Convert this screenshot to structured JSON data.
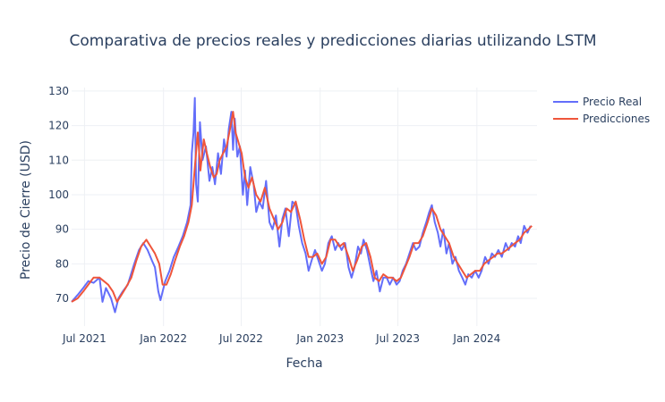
{
  "chart_data": {
    "type": "line",
    "title": "Comparativa de precios reales y predicciones diarias utilizando LSTM",
    "xlabel": "Fecha",
    "ylabel": "Precio de Cierre (USD)",
    "x_range": [
      "2021-06-01",
      "2024-05-20"
    ],
    "ylim": [
      62,
      131
    ],
    "y_ticks": [
      70,
      80,
      90,
      100,
      110,
      120,
      130
    ],
    "x_ticks": [
      {
        "date": "2021-07-01",
        "label": "Jul 2021"
      },
      {
        "date": "2022-01-01",
        "label": "Jan 2022"
      },
      {
        "date": "2022-07-01",
        "label": "Jul 2022"
      },
      {
        "date": "2023-01-01",
        "label": "Jan 2023"
      },
      {
        "date": "2023-07-01",
        "label": "Jul 2023"
      },
      {
        "date": "2024-01-01",
        "label": "Jan 2024"
      }
    ],
    "grid": true,
    "legend_position": "top-right",
    "series": [
      {
        "name": "Precio Real",
        "color": "#636efa",
        "points": [
          [
            "2021-06-01",
            69
          ],
          [
            "2021-06-15",
            71
          ],
          [
            "2021-06-28",
            73
          ],
          [
            "2021-07-10",
            75
          ],
          [
            "2021-07-22",
            74.5
          ],
          [
            "2021-08-05",
            76
          ],
          [
            "2021-08-12",
            69
          ],
          [
            "2021-08-20",
            73
          ],
          [
            "2021-09-01",
            70
          ],
          [
            "2021-09-10",
            66
          ],
          [
            "2021-09-18",
            70
          ],
          [
            "2021-09-28",
            72
          ],
          [
            "2021-10-10",
            74
          ],
          [
            "2021-10-25",
            80
          ],
          [
            "2021-11-05",
            84
          ],
          [
            "2021-11-15",
            86
          ],
          [
            "2021-11-25",
            84
          ],
          [
            "2021-12-05",
            81
          ],
          [
            "2021-12-12",
            79
          ],
          [
            "2021-12-20",
            72
          ],
          [
            "2021-12-25",
            69.5
          ],
          [
            "2022-01-05",
            75
          ],
          [
            "2022-01-15",
            78
          ],
          [
            "2022-01-25",
            82
          ],
          [
            "2022-02-05",
            85
          ],
          [
            "2022-02-15",
            88
          ],
          [
            "2022-02-25",
            92
          ],
          [
            "2022-03-05",
            97
          ],
          [
            "2022-03-08",
            112
          ],
          [
            "2022-03-12",
            118
          ],
          [
            "2022-03-15",
            128
          ],
          [
            "2022-03-18",
            103
          ],
          [
            "2022-03-22",
            98
          ],
          [
            "2022-03-27",
            121
          ],
          [
            "2022-04-02",
            110
          ],
          [
            "2022-04-10",
            114
          ],
          [
            "2022-04-18",
            104
          ],
          [
            "2022-04-25",
            108
          ],
          [
            "2022-05-01",
            103
          ],
          [
            "2022-05-08",
            112
          ],
          [
            "2022-05-15",
            106
          ],
          [
            "2022-05-22",
            116
          ],
          [
            "2022-05-28",
            111
          ],
          [
            "2022-06-02",
            119
          ],
          [
            "2022-06-08",
            124
          ],
          [
            "2022-06-12",
            113
          ],
          [
            "2022-06-16",
            122
          ],
          [
            "2022-06-22",
            111
          ],
          [
            "2022-06-28",
            114
          ],
          [
            "2022-07-05",
            100
          ],
          [
            "2022-07-10",
            107
          ],
          [
            "2022-07-15",
            97
          ],
          [
            "2022-07-22",
            108
          ],
          [
            "2022-07-30",
            103
          ],
          [
            "2022-08-05",
            95
          ],
          [
            "2022-08-12",
            98
          ],
          [
            "2022-08-20",
            96
          ],
          [
            "2022-08-28",
            104
          ],
          [
            "2022-09-05",
            92
          ],
          [
            "2022-09-12",
            90
          ],
          [
            "2022-09-20",
            94
          ],
          [
            "2022-09-28",
            85
          ],
          [
            "2022-10-05",
            93
          ],
          [
            "2022-10-12",
            96
          ],
          [
            "2022-10-20",
            88
          ],
          [
            "2022-10-28",
            98
          ],
          [
            "2022-11-05",
            97
          ],
          [
            "2022-11-12",
            91
          ],
          [
            "2022-11-20",
            86
          ],
          [
            "2022-11-28",
            83
          ],
          [
            "2022-12-05",
            78
          ],
          [
            "2022-12-12",
            81
          ],
          [
            "2022-12-20",
            84
          ],
          [
            "2022-12-28",
            81
          ],
          [
            "2023-01-05",
            78
          ],
          [
            "2023-01-12",
            80
          ],
          [
            "2023-01-20",
            86
          ],
          [
            "2023-01-28",
            88
          ],
          [
            "2023-02-05",
            84
          ],
          [
            "2023-02-12",
            86
          ],
          [
            "2023-02-20",
            84
          ],
          [
            "2023-02-28",
            86
          ],
          [
            "2023-03-08",
            79
          ],
          [
            "2023-03-15",
            76
          ],
          [
            "2023-03-22",
            79
          ],
          [
            "2023-03-30",
            85
          ],
          [
            "2023-04-06",
            83
          ],
          [
            "2023-04-12",
            87
          ],
          [
            "2023-04-20",
            84
          ],
          [
            "2023-04-28",
            79
          ],
          [
            "2023-05-05",
            75
          ],
          [
            "2023-05-12",
            78
          ],
          [
            "2023-05-20",
            72
          ],
          [
            "2023-05-28",
            76
          ],
          [
            "2023-06-05",
            76
          ],
          [
            "2023-06-12",
            74
          ],
          [
            "2023-06-20",
            76
          ],
          [
            "2023-06-28",
            74
          ],
          [
            "2023-07-05",
            75
          ],
          [
            "2023-07-12",
            78
          ],
          [
            "2023-07-20",
            80
          ],
          [
            "2023-07-28",
            83
          ],
          [
            "2023-08-05",
            86
          ],
          [
            "2023-08-12",
            84
          ],
          [
            "2023-08-20",
            85
          ],
          [
            "2023-08-28",
            89
          ],
          [
            "2023-09-05",
            92
          ],
          [
            "2023-09-12",
            95
          ],
          [
            "2023-09-18",
            97
          ],
          [
            "2023-09-25",
            92
          ],
          [
            "2023-10-02",
            89
          ],
          [
            "2023-10-08",
            85
          ],
          [
            "2023-10-15",
            90
          ],
          [
            "2023-10-22",
            83
          ],
          [
            "2023-10-28",
            86
          ],
          [
            "2023-11-05",
            80
          ],
          [
            "2023-11-12",
            82
          ],
          [
            "2023-11-20",
            78
          ],
          [
            "2023-11-28",
            76
          ],
          [
            "2023-12-05",
            74
          ],
          [
            "2023-12-12",
            77
          ],
          [
            "2023-12-20",
            76
          ],
          [
            "2023-12-28",
            78
          ],
          [
            "2024-01-05",
            76
          ],
          [
            "2024-01-12",
            78
          ],
          [
            "2024-01-20",
            82
          ],
          [
            "2024-01-28",
            80
          ],
          [
            "2024-02-05",
            83
          ],
          [
            "2024-02-12",
            82
          ],
          [
            "2024-02-20",
            84
          ],
          [
            "2024-02-28",
            82
          ],
          [
            "2024-03-08",
            86
          ],
          [
            "2024-03-15",
            84
          ],
          [
            "2024-03-22",
            86
          ],
          [
            "2024-03-30",
            85
          ],
          [
            "2024-04-06",
            88
          ],
          [
            "2024-04-12",
            86
          ],
          [
            "2024-04-20",
            91
          ],
          [
            "2024-04-28",
            89
          ],
          [
            "2024-05-05",
            91
          ]
        ]
      },
      {
        "name": "Predicciones",
        "color": "#ef553b",
        "points": [
          [
            "2021-06-01",
            69
          ],
          [
            "2021-06-15",
            70
          ],
          [
            "2021-06-28",
            72
          ],
          [
            "2021-07-10",
            74
          ],
          [
            "2021-07-22",
            76
          ],
          [
            "2021-08-05",
            76
          ],
          [
            "2021-08-15",
            75
          ],
          [
            "2021-08-25",
            74
          ],
          [
            "2021-09-05",
            72
          ],
          [
            "2021-09-15",
            69
          ],
          [
            "2021-09-25",
            71
          ],
          [
            "2021-10-05",
            73
          ],
          [
            "2021-10-18",
            76
          ],
          [
            "2021-10-30",
            81
          ],
          [
            "2021-11-10",
            85
          ],
          [
            "2021-11-22",
            87
          ],
          [
            "2021-12-02",
            85
          ],
          [
            "2021-12-12",
            83
          ],
          [
            "2021-12-22",
            80
          ],
          [
            "2021-12-30",
            74
          ],
          [
            "2022-01-08",
            74
          ],
          [
            "2022-01-18",
            77
          ],
          [
            "2022-01-28",
            81
          ],
          [
            "2022-02-08",
            85
          ],
          [
            "2022-02-18",
            88
          ],
          [
            "2022-02-28",
            92
          ],
          [
            "2022-03-08",
            97
          ],
          [
            "2022-03-15",
            108
          ],
          [
            "2022-03-22",
            118
          ],
          [
            "2022-03-28",
            107
          ],
          [
            "2022-04-05",
            116
          ],
          [
            "2022-04-12",
            112
          ],
          [
            "2022-04-20",
            108
          ],
          [
            "2022-04-28",
            105
          ],
          [
            "2022-05-05",
            106
          ],
          [
            "2022-05-12",
            110
          ],
          [
            "2022-05-20",
            112
          ],
          [
            "2022-05-28",
            114
          ],
          [
            "2022-06-05",
            119
          ],
          [
            "2022-06-12",
            124
          ],
          [
            "2022-06-18",
            118
          ],
          [
            "2022-06-25",
            115
          ],
          [
            "2022-07-02",
            112
          ],
          [
            "2022-07-10",
            105
          ],
          [
            "2022-07-18",
            102
          ],
          [
            "2022-07-26",
            105
          ],
          [
            "2022-08-05",
            100
          ],
          [
            "2022-08-15",
            98
          ],
          [
            "2022-08-25",
            102
          ],
          [
            "2022-09-05",
            96
          ],
          [
            "2022-09-15",
            93
          ],
          [
            "2022-09-25",
            90
          ],
          [
            "2022-10-05",
            92
          ],
          [
            "2022-10-15",
            96
          ],
          [
            "2022-10-25",
            95
          ],
          [
            "2022-11-05",
            98
          ],
          [
            "2022-11-15",
            93
          ],
          [
            "2022-11-25",
            87
          ],
          [
            "2022-12-05",
            82
          ],
          [
            "2022-12-15",
            82
          ],
          [
            "2022-12-25",
            83
          ],
          [
            "2023-01-05",
            80
          ],
          [
            "2023-01-15",
            82
          ],
          [
            "2023-01-25",
            87
          ],
          [
            "2023-02-05",
            87
          ],
          [
            "2023-02-15",
            85
          ],
          [
            "2023-02-25",
            86
          ],
          [
            "2023-03-08",
            82
          ],
          [
            "2023-03-18",
            78
          ],
          [
            "2023-03-28",
            81
          ],
          [
            "2023-04-08",
            85
          ],
          [
            "2023-04-18",
            86
          ],
          [
            "2023-04-28",
            82
          ],
          [
            "2023-05-08",
            76
          ],
          [
            "2023-05-18",
            75
          ],
          [
            "2023-05-28",
            77
          ],
          [
            "2023-06-08",
            76
          ],
          [
            "2023-06-18",
            76
          ],
          [
            "2023-06-28",
            75
          ],
          [
            "2023-07-08",
            76
          ],
          [
            "2023-07-18",
            79
          ],
          [
            "2023-07-28",
            82
          ],
          [
            "2023-08-08",
            86
          ],
          [
            "2023-08-18",
            86
          ],
          [
            "2023-08-28",
            88
          ],
          [
            "2023-09-08",
            92
          ],
          [
            "2023-09-18",
            96
          ],
          [
            "2023-09-28",
            94
          ],
          [
            "2023-10-08",
            90
          ],
          [
            "2023-10-18",
            88
          ],
          [
            "2023-10-28",
            86
          ],
          [
            "2023-11-08",
            82
          ],
          [
            "2023-11-18",
            80
          ],
          [
            "2023-11-28",
            78
          ],
          [
            "2023-12-08",
            76
          ],
          [
            "2023-12-18",
            77
          ],
          [
            "2023-12-28",
            78
          ],
          [
            "2024-01-08",
            78
          ],
          [
            "2024-01-18",
            80
          ],
          [
            "2024-01-28",
            81
          ],
          [
            "2024-02-08",
            82
          ],
          [
            "2024-02-18",
            83
          ],
          [
            "2024-02-28",
            83
          ],
          [
            "2024-03-10",
            84
          ],
          [
            "2024-03-20",
            85
          ],
          [
            "2024-03-30",
            86
          ],
          [
            "2024-04-10",
            87
          ],
          [
            "2024-04-20",
            89
          ],
          [
            "2024-04-30",
            90
          ],
          [
            "2024-05-08",
            91
          ]
        ]
      }
    ]
  }
}
